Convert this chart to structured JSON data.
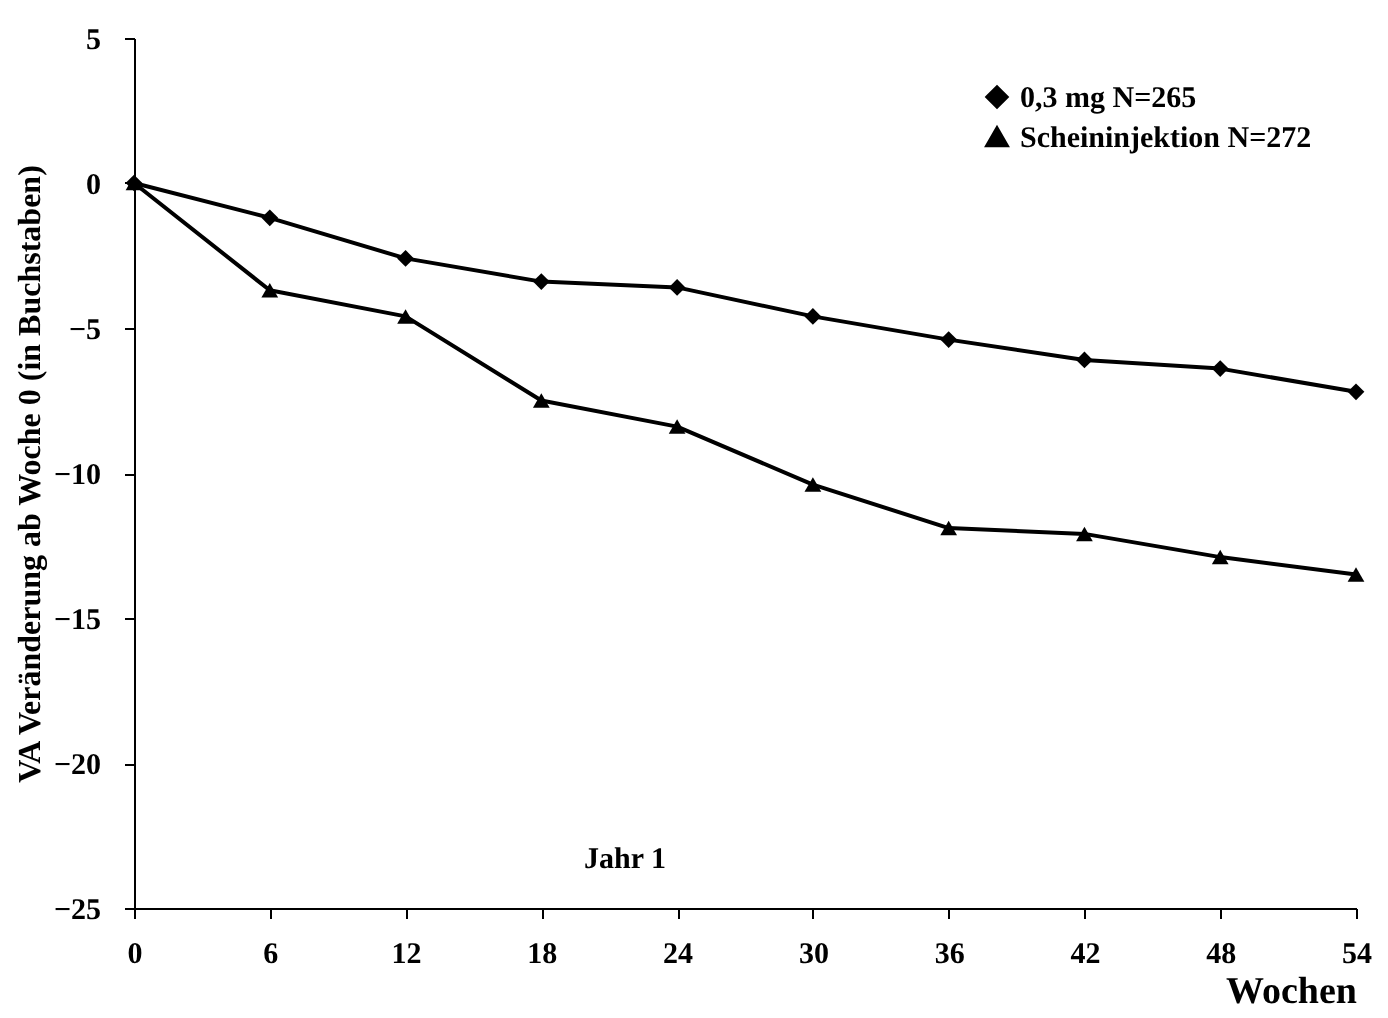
{
  "chart_data": {
    "type": "line",
    "xlabel": "Wochen",
    "ylabel": "VA Veränderung ab Woche 0 (in Buchstaben)",
    "x": [
      0,
      6,
      12,
      18,
      24,
      30,
      36,
      42,
      48,
      54
    ],
    "series": [
      {
        "name": "0,3 mg  N=265",
        "color": "#000000",
        "marker": "diamond",
        "values": [
          0,
          -1.2,
          -2.6,
          -3.4,
          -3.6,
          -4.6,
          -5.4,
          -6.1,
          -6.4,
          -7.2
        ]
      },
      {
        "name": "Scheininjektion N=272",
        "color": "#000000",
        "marker": "triangle",
        "values": [
          0,
          -3.7,
          -4.6,
          -7.5,
          -8.4,
          -10.4,
          -11.9,
          -12.1,
          -12.9,
          -13.5
        ]
      }
    ],
    "xlim": [
      0,
      54
    ],
    "xticks": [
      0,
      6,
      12,
      18,
      24,
      30,
      36,
      42,
      48,
      54
    ],
    "ylim": [
      -25,
      5
    ],
    "yticks": [
      5,
      0,
      -5,
      -10,
      -15,
      -20,
      -25
    ],
    "grid": false,
    "legend": "top right",
    "line_style": "solid",
    "annotations": [
      "Jahr 1"
    ]
  }
}
